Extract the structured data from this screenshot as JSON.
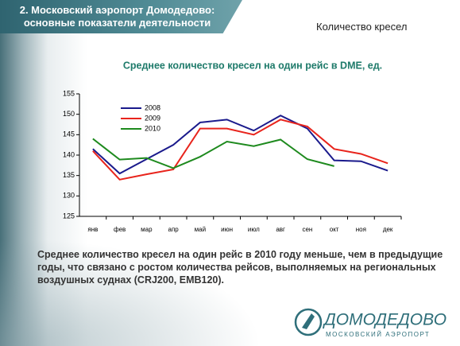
{
  "header": {
    "title_lines": [
      "2. Московский аэропорт Домодедово:",
      "основные показатели деятельности"
    ],
    "section": "Количество кресел"
  },
  "chart_data": {
    "type": "line",
    "title": "Среднее количество кресел на один рейс в DME, ед.",
    "categories": [
      "янв",
      "фев",
      "мар",
      "апр",
      "май",
      "июн",
      "июл",
      "авг",
      "сен",
      "окт",
      "ноя",
      "дек"
    ],
    "series": [
      {
        "name": "2008",
        "color": "#1a1a8c",
        "values": [
          141.5,
          135.5,
          139,
          142.5,
          148,
          148.7,
          146,
          149.7,
          146.5,
          138.7,
          138.5,
          136.2
        ]
      },
      {
        "name": "2009",
        "color": "#e8241c",
        "values": [
          141,
          134,
          135.3,
          136.5,
          146.5,
          146.5,
          145,
          148.7,
          147,
          141.5,
          140.3,
          138
        ]
      },
      {
        "name": "2010",
        "color": "#1e8a1e",
        "values": [
          144,
          138.9,
          139.3,
          136.8,
          139.6,
          143.3,
          142.2,
          143.8,
          139,
          137.3,
          null,
          null
        ]
      }
    ],
    "ylim": [
      125,
      155
    ],
    "yticks": [
      125,
      130,
      135,
      140,
      145,
      150,
      155
    ],
    "grid": false,
    "legend": "upper left"
  },
  "paragraph": "Среднее количество кресел на один рейс в 2010 году меньше, чем в предыдущие годы, что связано с ростом количества рейсов, выполняемых на региональных воздушных суднах (CRJ200, EMB120).",
  "logo": {
    "name": "ДОМОДЕДОВО",
    "tagline": "МОСКОВСКИЙ АЭРОПОРТ"
  }
}
